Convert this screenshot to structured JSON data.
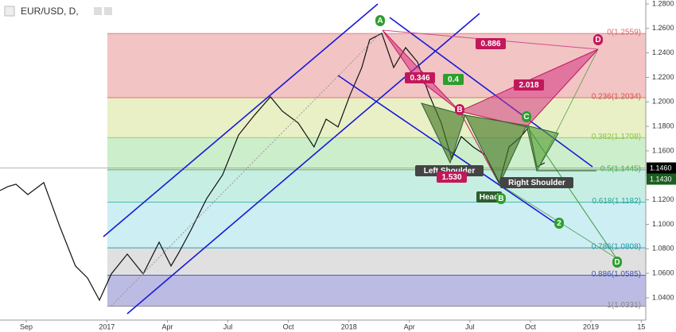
{
  "chart_data": {
    "type": "line",
    "title": "EUR/USD, D,",
    "xlim": [
      -1.3,
      30.72
    ],
    "ylim": [
      1.0218,
      1.2832
    ],
    "xticks": [
      {
        "value": 0,
        "label": "Sep"
      },
      {
        "value": 4,
        "label": "2017"
      },
      {
        "value": 7,
        "label": "Apr"
      },
      {
        "value": 10,
        "label": "Jul"
      },
      {
        "value": 13,
        "label": "Oct"
      },
      {
        "value": 16,
        "label": "2018"
      },
      {
        "value": 19,
        "label": "Apr"
      },
      {
        "value": 22,
        "label": "Jul"
      },
      {
        "value": 25,
        "label": "Oct"
      },
      {
        "value": 28,
        "label": "2019"
      },
      {
        "value": 30.5,
        "label": "15"
      }
    ],
    "yticks": [
      {
        "value": 1.04,
        "label": "1.0400"
      },
      {
        "value": 1.06,
        "label": "1.0600"
      },
      {
        "value": 1.08,
        "label": "1.0800"
      },
      {
        "value": 1.1,
        "label": "1.1000"
      },
      {
        "value": 1.12,
        "label": "1.1200"
      },
      {
        "value": 1.14,
        "label": "1.1400"
      },
      {
        "value": 1.16,
        "label": "1.1600"
      },
      {
        "value": 1.18,
        "label": "1.1800"
      },
      {
        "value": 1.2,
        "label": "1.2000"
      },
      {
        "value": 1.22,
        "label": "1.2200"
      },
      {
        "value": 1.24,
        "label": "1.2400"
      },
      {
        "value": 1.26,
        "label": "1.2600"
      },
      {
        "value": 1.28,
        "label": "1.2800"
      }
    ],
    "series": [
      {
        "name": "EUR/USD",
        "color": "#111111",
        "x": [
          -1.3,
          -0.91,
          -0.51,
          0.08,
          0.87,
          1.66,
          2.44,
          3.04,
          3.63,
          4.22,
          5.01,
          5.8,
          6.59,
          7.18,
          7.57,
          8.16,
          8.95,
          9.74,
          10.53,
          11.32,
          12.11,
          12.7,
          13.49,
          14.27,
          14.87,
          15.46,
          16.05,
          16.64,
          17.03,
          17.63,
          18.22,
          18.81,
          19.4,
          19.99,
          20.58,
          21.1,
          21.57,
          22.16,
          22.75,
          23.46,
          23.94,
          24.53,
          24.92,
          25.32,
          25.71
        ],
        "values": [
          1.1276,
          1.1308,
          1.1328,
          1.1243,
          1.1341,
          1.0984,
          1.066,
          1.0562,
          1.0381,
          1.0595,
          1.0757,
          1.0595,
          1.0854,
          1.066,
          1.077,
          1.0951,
          1.1211,
          1.1405,
          1.173,
          1.1892,
          1.2041,
          1.1924,
          1.1827,
          1.1632,
          1.1859,
          1.1795,
          1.2054,
          1.2281,
          1.2508,
          1.256,
          1.2281,
          1.2443,
          1.2326,
          1.2054,
          1.1827,
          1.1535,
          1.1717,
          1.1632,
          1.1568,
          1.1341,
          1.1632,
          1.1717,
          1.1795,
          1.147,
          1.1503
        ]
      }
    ],
    "fib_levels": [
      {
        "label": "0(1.2559)",
        "value": 1.2559,
        "color": "#e06666",
        "fill": "#f2c4c4"
      },
      {
        "label": "0.236(1.2034)",
        "value": 1.2034,
        "color": "#d9534f",
        "fill": "#e9f0c6"
      },
      {
        "label": "0.382(1.1708)",
        "value": 1.1708,
        "color": "#8bc34a",
        "fill": "#cdeecb"
      },
      {
        "label": "0.5(1.1445)",
        "value": 1.1445,
        "color": "#4caf50",
        "fill": "#c7eee3"
      },
      {
        "label": "0.618(1.1182)",
        "value": 1.1182,
        "color": "#26a69a",
        "fill": "#cdeef3"
      },
      {
        "label": "0.786(1.0808)",
        "value": 1.0808,
        "color": "#2196a8",
        "fill": "#e0e0e0"
      },
      {
        "label": "0.886(1.0585)",
        "value": 1.0585,
        "color": "#3f51b5",
        "fill": "#bcbbe3"
      },
      {
        "label": "1(1.0331)",
        "value": 1.0331,
        "color": "#888888"
      }
    ],
    "price_tags": [
      {
        "label": "1.1460",
        "value": 1.146,
        "color": "#000000"
      },
      {
        "label": "1.1430",
        "value": 1.143,
        "color": "#1b5e20"
      }
    ],
    "annotations": [
      {
        "text": "A",
        "color": "#2e9e2e"
      },
      {
        "text": "0.886",
        "color": "#c2185b"
      },
      {
        "text": "0.346",
        "color": "#c2185b"
      },
      {
        "text": "0.4",
        "color": "#2e9e2e"
      },
      {
        "text": "2.018",
        "color": "#c2185b"
      },
      {
        "text": "B",
        "color": "#c2185b"
      },
      {
        "text": "C",
        "color": "#2e9e2e"
      },
      {
        "text": "D",
        "color": "#c2185b"
      },
      {
        "text": "Left Shoulder",
        "color": "#444444"
      },
      {
        "text": "1.530",
        "color": "#c2185b"
      },
      {
        "text": "Head",
        "color": "#2e5e2e"
      },
      {
        "text": "B",
        "color": "#2e9e2e"
      },
      {
        "text": "Right Shoulder",
        "color": "#444444"
      },
      {
        "text": "2",
        "color": "#2e9e2e"
      },
      {
        "text": "D",
        "color": "#2e9e2e"
      }
    ]
  }
}
